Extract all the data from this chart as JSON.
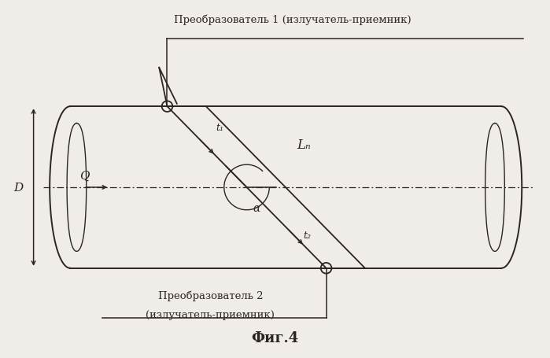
{
  "title": "Фиг.4",
  "label_transducer1": "Преобразователь 1 (излучатель-приемник)",
  "label_transducer2": "Преобразователь 2",
  "label_transducer2b": "(излучатель-приемник)",
  "label_D": "D",
  "label_Q": "Q",
  "label_t1": "t₁",
  "label_t2": "t₂",
  "label_Ln": "Lₙ",
  "label_alpha": "α",
  "bg_color": "#f0ede8",
  "line_color": "#2a2520",
  "fig_width": 6.99,
  "fig_height": 4.56,
  "dpi": 100
}
